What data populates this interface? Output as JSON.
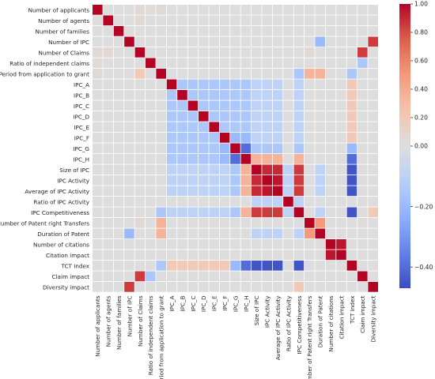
{
  "chart_data": {
    "type": "heatmap",
    "variables": [
      "Number of applicants",
      "Number of agents",
      "Number of families",
      "Number of IPC",
      "Number of Claims",
      "Ratio of independent claims",
      "Period from application to grant",
      "IPC_A",
      "IPC_B",
      "IPC_C",
      "IPC_D",
      "IPC_E",
      "IPC_F",
      "IPC_G",
      "IPC_H",
      "Size of IPC",
      "IPC Activity",
      "Average of IPC Activity",
      "Ratio of IPC Activity",
      "IPC Competitiveness",
      "Number of Patent right Transfers",
      "Duration of Patent",
      "Number of citations",
      "Citation impact",
      "TCT Index",
      "Claim impact",
      "Diversity impact"
    ],
    "matrix": [
      [
        1,
        0,
        0,
        0,
        0.05,
        0.02,
        0.05,
        0,
        0,
        0,
        0,
        0,
        0,
        0,
        0,
        0,
        0,
        0,
        0,
        0,
        0,
        0,
        0,
        0,
        0,
        0,
        0
      ],
      [
        0,
        1,
        0,
        0,
        0.05,
        0,
        0,
        0,
        0,
        0,
        0,
        0,
        0,
        0,
        0,
        0,
        0,
        0,
        0,
        0,
        0,
        0,
        0,
        0,
        0,
        0,
        0
      ],
      [
        0,
        0,
        1,
        0,
        0,
        0,
        0,
        0,
        0,
        0,
        0,
        0,
        0,
        0,
        0,
        0,
        0,
        0,
        0,
        0,
        0,
        0,
        0,
        0,
        0,
        0,
        0
      ],
      [
        0,
        0,
        0,
        1,
        0,
        0,
        0,
        0,
        0,
        0,
        0,
        0,
        0,
        0,
        0,
        0,
        0,
        0,
        0,
        0,
        0,
        -0.2,
        0,
        0,
        0,
        0,
        0.85
      ],
      [
        0.05,
        0.05,
        0,
        0,
        1,
        0,
        0,
        0,
        0,
        0,
        0,
        0,
        0,
        0,
        0,
        0,
        0,
        0,
        0,
        0,
        0.05,
        0,
        0,
        0,
        0,
        0.85,
        0
      ],
      [
        0.02,
        0,
        0,
        0,
        0,
        1,
        0,
        0,
        0,
        0,
        0,
        0,
        0,
        0,
        0,
        0,
        0,
        0,
        0,
        0,
        0,
        0,
        0,
        0,
        0,
        -0.15,
        0
      ],
      [
        0.05,
        0,
        0,
        0,
        0.2,
        0,
        1,
        0,
        0,
        0,
        0,
        0,
        0,
        0,
        0,
        0,
        0,
        0,
        0,
        -0.15,
        0.35,
        0.35,
        0,
        0,
        -0.15,
        0,
        0
      ],
      [
        0,
        0,
        0,
        0,
        0,
        0,
        0,
        1,
        -0.15,
        -0.15,
        -0.15,
        -0.15,
        -0.15,
        -0.15,
        -0.15,
        -0.1,
        -0.1,
        -0.1,
        0,
        -0.1,
        0,
        0,
        0,
        0,
        0.2,
        0,
        0
      ],
      [
        0,
        0,
        0,
        0,
        0,
        0,
        0,
        -0.15,
        1,
        -0.15,
        -0.15,
        -0.15,
        -0.15,
        -0.15,
        -0.15,
        -0.1,
        -0.1,
        -0.1,
        0,
        -0.1,
        0,
        0,
        0,
        0,
        0.2,
        0,
        0
      ],
      [
        0,
        0,
        0,
        0,
        0,
        0,
        0,
        -0.15,
        -0.15,
        1,
        -0.15,
        -0.15,
        -0.15,
        -0.15,
        -0.15,
        -0.1,
        -0.1,
        -0.1,
        0,
        -0.1,
        0,
        0,
        0,
        0,
        0.2,
        0,
        0
      ],
      [
        0,
        0,
        0,
        0,
        0,
        0,
        0,
        -0.15,
        -0.15,
        -0.15,
        1,
        -0.15,
        -0.15,
        -0.15,
        -0.15,
        -0.1,
        -0.1,
        -0.1,
        0,
        -0.1,
        0,
        0,
        0,
        0,
        0.2,
        0,
        0
      ],
      [
        0,
        0,
        0,
        0,
        0,
        0,
        0,
        -0.15,
        -0.15,
        -0.15,
        -0.15,
        1,
        -0.15,
        -0.15,
        -0.15,
        -0.1,
        -0.1,
        -0.1,
        0,
        -0.1,
        0,
        0,
        0,
        0,
        0.2,
        0,
        0
      ],
      [
        0,
        0,
        0,
        0,
        0,
        0,
        0,
        -0.15,
        -0.15,
        -0.15,
        -0.15,
        -0.15,
        1,
        -0.2,
        -0.2,
        -0.1,
        -0.1,
        -0.1,
        0,
        -0.1,
        0,
        0,
        0,
        0,
        0.2,
        0,
        0
      ],
      [
        0,
        0,
        0,
        0,
        0,
        0,
        0,
        -0.15,
        -0.15,
        -0.15,
        -0.15,
        -0.15,
        -0.2,
        1,
        -0.4,
        -0.15,
        -0.15,
        -0.15,
        0,
        -0.15,
        0,
        0,
        0,
        0,
        -0.2,
        0,
        0
      ],
      [
        0,
        0,
        0,
        0,
        0,
        0,
        0,
        -0.15,
        -0.15,
        -0.15,
        -0.15,
        -0.15,
        -0.2,
        -0.4,
        1,
        0.35,
        0.35,
        0.35,
        0,
        0.35,
        0,
        0,
        0,
        0,
        -0.4,
        0,
        0
      ],
      [
        0,
        0,
        0,
        0,
        0,
        0,
        0,
        -0.1,
        -0.1,
        -0.1,
        -0.1,
        -0.1,
        -0.1,
        -0.15,
        0.35,
        1,
        0.9,
        0.9,
        -0.1,
        0.85,
        0,
        -0.1,
        0,
        0,
        -0.45,
        0,
        0
      ],
      [
        0,
        0,
        0,
        0,
        0,
        0,
        0,
        -0.1,
        -0.1,
        -0.1,
        -0.1,
        -0.1,
        -0.1,
        -0.15,
        0.35,
        0.9,
        1,
        0.95,
        -0.1,
        0.85,
        0,
        -0.1,
        0,
        0,
        -0.45,
        0,
        0
      ],
      [
        0,
        0,
        0,
        0,
        0,
        0,
        0,
        -0.1,
        -0.1,
        -0.1,
        -0.1,
        -0.1,
        -0.1,
        -0.15,
        0.35,
        0.9,
        0.95,
        1,
        -0.1,
        0.85,
        0,
        -0.1,
        0,
        0,
        -0.45,
        0,
        0
      ],
      [
        0,
        0,
        0,
        0,
        0,
        0,
        0,
        0,
        0,
        0,
        0,
        0,
        0,
        0,
        0,
        -0.1,
        -0.1,
        -0.1,
        1,
        -0.1,
        0,
        0,
        0,
        0,
        0,
        0,
        0
      ],
      [
        0,
        0,
        0,
        0,
        0,
        0,
        -0.15,
        -0.1,
        -0.1,
        -0.1,
        -0.1,
        -0.1,
        -0.1,
        -0.15,
        0.35,
        0.85,
        0.85,
        0.85,
        -0.1,
        1,
        0,
        -0.1,
        0,
        0,
        -0.45,
        0,
        0.2
      ],
      [
        0,
        0,
        0,
        0,
        0.05,
        0,
        0.35,
        0,
        0,
        0,
        0,
        0,
        0,
        0,
        0,
        0,
        0,
        0,
        0,
        0,
        1,
        0.5,
        0,
        0,
        0,
        0,
        0
      ],
      [
        0,
        0,
        0,
        -0.2,
        0,
        0,
        0.35,
        0,
        0,
        0,
        0,
        0,
        0,
        0,
        0,
        -0.1,
        -0.1,
        -0.1,
        0,
        -0.1,
        0.5,
        1,
        0,
        0,
        0,
        0,
        0
      ],
      [
        0,
        0,
        0,
        0,
        0,
        0,
        0,
        0,
        0,
        0,
        0,
        0,
        0,
        0,
        0,
        0,
        0,
        0,
        0,
        0,
        0,
        0,
        1,
        0.95,
        0,
        0,
        0
      ],
      [
        0,
        0,
        0,
        0,
        0,
        0,
        0,
        0,
        0,
        0,
        0,
        0,
        0,
        0,
        0,
        0,
        0,
        0,
        0,
        0,
        0,
        0,
        0.95,
        1,
        0,
        0,
        0
      ],
      [
        0,
        0,
        0,
        0,
        0,
        0,
        -0.15,
        0.2,
        0.2,
        0.2,
        0.2,
        0.2,
        0.2,
        -0.2,
        -0.4,
        -0.45,
        -0.45,
        -0.45,
        0,
        -0.45,
        0,
        0,
        0,
        0,
        1,
        0,
        0
      ],
      [
        0,
        0,
        0,
        0,
        0.85,
        -0.15,
        0,
        0,
        0,
        0,
        0,
        0,
        0,
        0,
        0,
        0,
        0,
        0,
        0,
        0,
        0,
        0,
        0,
        0,
        0,
        1,
        0
      ],
      [
        0,
        0,
        0,
        0.85,
        0,
        0,
        0,
        0,
        0,
        0,
        0,
        0,
        0,
        0,
        0,
        0,
        0,
        0,
        0,
        0.2,
        0,
        0,
        0,
        0,
        0,
        0,
        1
      ]
    ],
    "colorbar": {
      "ticks": [
        1.0,
        0.8,
        0.6,
        0.4,
        0.2,
        0.0,
        -0.2,
        -0.4
      ],
      "tick_labels": [
        "1.00",
        "0.80",
        "0.60",
        "0.40",
        "0.20",
        "0.00",
        "−0.20",
        "−0.40"
      ],
      "vmin": -0.47,
      "vmax": 1.0
    },
    "colormap": "coolwarm",
    "title": "",
    "xlabel": "",
    "ylabel": ""
  }
}
